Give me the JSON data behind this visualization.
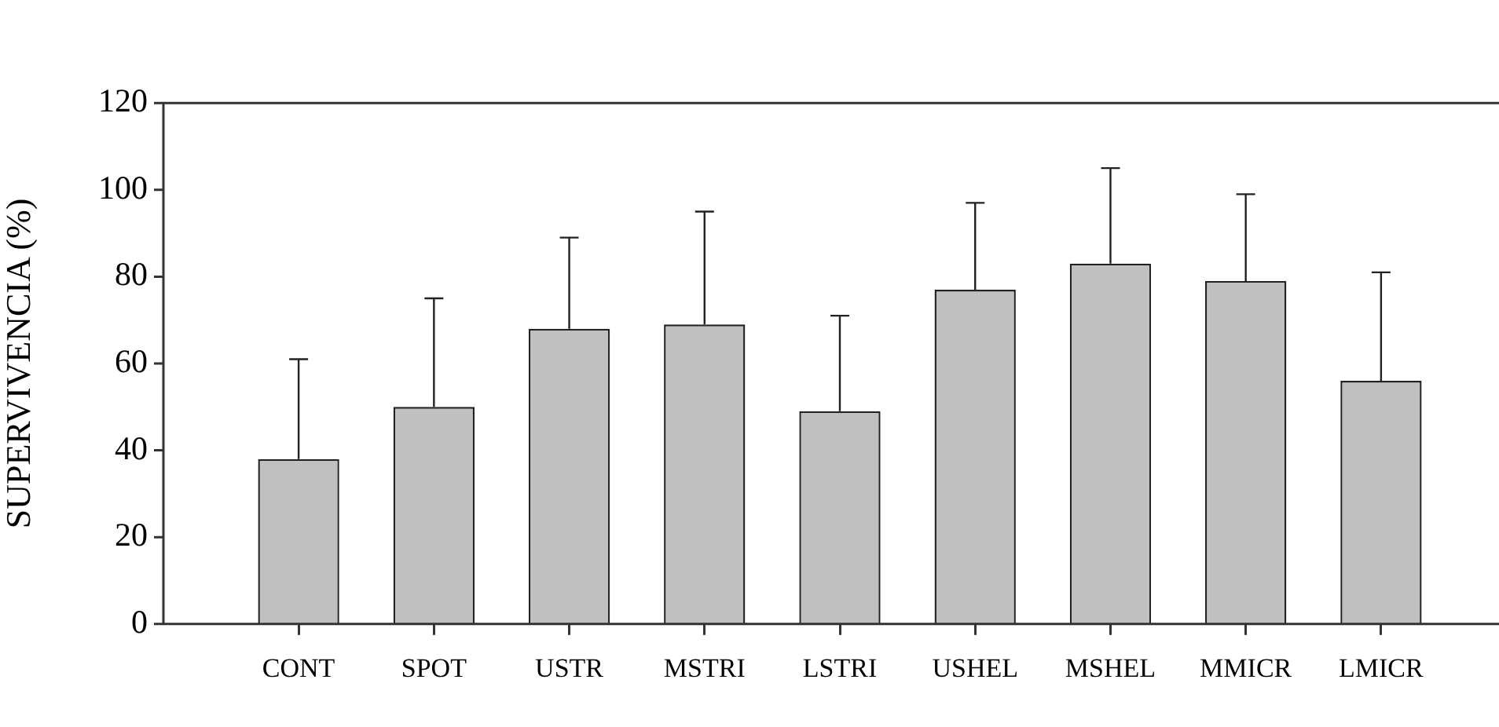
{
  "chart_data": {
    "type": "bar",
    "ylabel": "SUPERVIVENCIA (%)",
    "categories": [
      "CONT",
      "SPOT",
      "USTR",
      "MSTRI",
      "LSTRI",
      "USHEL",
      "MSHEL",
      "MMICR",
      "LMICR"
    ],
    "values": [
      38,
      50,
      68,
      69,
      49,
      77,
      83,
      79,
      56
    ],
    "errors": [
      [
        38,
        61
      ],
      [
        50,
        75
      ],
      [
        68,
        89
      ],
      [
        69,
        95
      ],
      [
        49,
        71
      ],
      [
        77,
        97
      ],
      [
        83,
        105
      ],
      [
        79,
        99
      ],
      [
        56,
        81
      ]
    ],
    "color": "#c0c0c0",
    "ylim": [
      0,
      120
    ],
    "yticks": [
      0,
      20,
      40,
      60,
      80,
      100,
      120
    ],
    "grid": false,
    "legend": false
  }
}
